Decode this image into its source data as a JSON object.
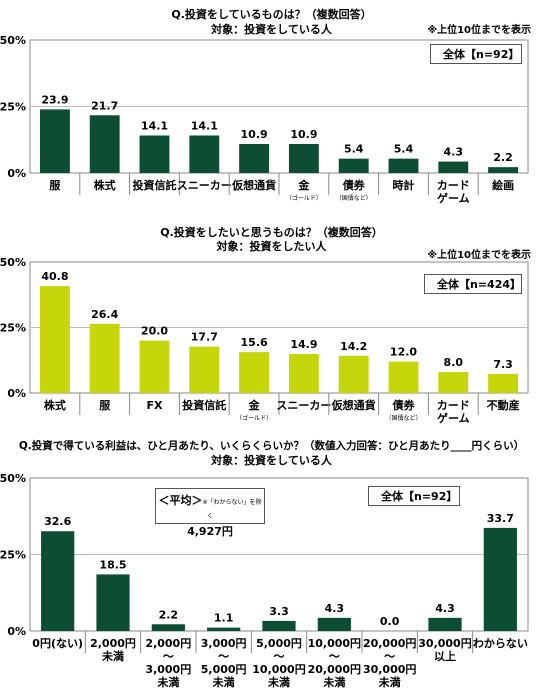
{
  "colors": {
    "dark": "#0d4d34",
    "lime": "#c5d60a",
    "axis": "#888888",
    "grid": "#bbbbbb"
  },
  "chart_data": [
    {
      "type": "bar",
      "title": "Q.投資をしているものは？（複数回答）",
      "subtitle": "対象：投資をしている人",
      "note": "※上位10位までを表示",
      "legend_label": "全体【n=92】",
      "legend_position": "top-right",
      "ylim": [
        0,
        50
      ],
      "yticks": [
        "0%",
        "25%",
        "50%"
      ],
      "value_labels": [
        "23.9",
        "21.7",
        "14.1",
        "14.1",
        "10.9",
        "10.9",
        "5.4",
        "5.4",
        "4.3",
        "2.2"
      ],
      "categories": [
        {
          "label": "服",
          "sub": ""
        },
        {
          "label": "株式",
          "sub": ""
        },
        {
          "label": "投資信託",
          "sub": ""
        },
        {
          "label": "スニーカー",
          "sub": ""
        },
        {
          "label": "仮想通貨",
          "sub": ""
        },
        {
          "label": "金",
          "sub": "（ゴールド）"
        },
        {
          "label": "債券",
          "sub": "（国債など）"
        },
        {
          "label": "時計",
          "sub": ""
        },
        {
          "label": "カード\nゲーム",
          "sub": ""
        },
        {
          "label": "絵画",
          "sub": ""
        }
      ],
      "series": [
        {
          "name": "全体【n=92】",
          "values": [
            23.9,
            21.7,
            14.1,
            14.1,
            10.9,
            10.9,
            5.4,
            5.4,
            4.3,
            2.2
          ]
        }
      ]
    },
    {
      "type": "bar",
      "title": "Q.投資をしたいと思うものは？（複数回答）",
      "subtitle": "対象：投資をしたい人",
      "note": "※上位10位までを表示",
      "legend_label": "全体【n=424】",
      "legend_position": "top-right",
      "ylim": [
        0,
        50
      ],
      "yticks": [
        "0%",
        "25%",
        "50%"
      ],
      "value_labels": [
        "40.8",
        "26.4",
        "20.0",
        "17.7",
        "15.6",
        "14.9",
        "14.2",
        "12.0",
        "8.0",
        "7.3"
      ],
      "categories": [
        {
          "label": "株式",
          "sub": ""
        },
        {
          "label": "服",
          "sub": ""
        },
        {
          "label": "FX",
          "sub": ""
        },
        {
          "label": "投資信託",
          "sub": ""
        },
        {
          "label": "金",
          "sub": "（ゴールド）"
        },
        {
          "label": "スニーカー",
          "sub": ""
        },
        {
          "label": "仮想通貨",
          "sub": ""
        },
        {
          "label": "債券",
          "sub": "（国債など）"
        },
        {
          "label": "カード\nゲーム",
          "sub": ""
        },
        {
          "label": "不動産",
          "sub": ""
        }
      ],
      "series": [
        {
          "name": "全体【n=424】",
          "values": [
            40.8,
            26.4,
            20.0,
            17.7,
            15.6,
            14.9,
            14.2,
            12.0,
            8.0,
            7.3
          ]
        }
      ]
    },
    {
      "type": "bar",
      "title": "Q.投資で得ている利益は、ひと月あたり、いくらくらいか？（数値入力回答：ひと月あたり____円くらい）",
      "subtitle": "対象：投資をしている人",
      "note": "",
      "legend_label": "全体【n=92】",
      "legend_position": "top-right",
      "average_box": {
        "title": "＜平均＞",
        "note": "※「わからない」を除く",
        "value": "4,927円"
      },
      "ylim": [
        0,
        50
      ],
      "yticks": [
        "0%",
        "25%",
        "50%"
      ],
      "value_labels": [
        "32.6",
        "18.5",
        "2.2",
        "1.1",
        "3.3",
        "4.3",
        "0.0",
        "4.3",
        "33.7"
      ],
      "categories": [
        {
          "label": "0円(ない)",
          "sub": ""
        },
        {
          "label": "2,000円\n未満",
          "sub": ""
        },
        {
          "label": "2,000円\n～\n3,000円\n未満",
          "sub": ""
        },
        {
          "label": "3,000円\n～\n5,000円\n未満",
          "sub": ""
        },
        {
          "label": "5,000円\n～\n10,000円\n未満",
          "sub": ""
        },
        {
          "label": "10,000円\n～\n20,000円\n未満",
          "sub": ""
        },
        {
          "label": "20,000円\n～\n30,000円\n未満",
          "sub": ""
        },
        {
          "label": "30,000円\n以上",
          "sub": ""
        },
        {
          "label": "わからない",
          "sub": ""
        }
      ],
      "series": [
        {
          "name": "全体【n=92】",
          "values": [
            32.6,
            18.5,
            2.2,
            1.1,
            3.3,
            4.3,
            0.0,
            4.3,
            33.7
          ]
        }
      ]
    }
  ]
}
